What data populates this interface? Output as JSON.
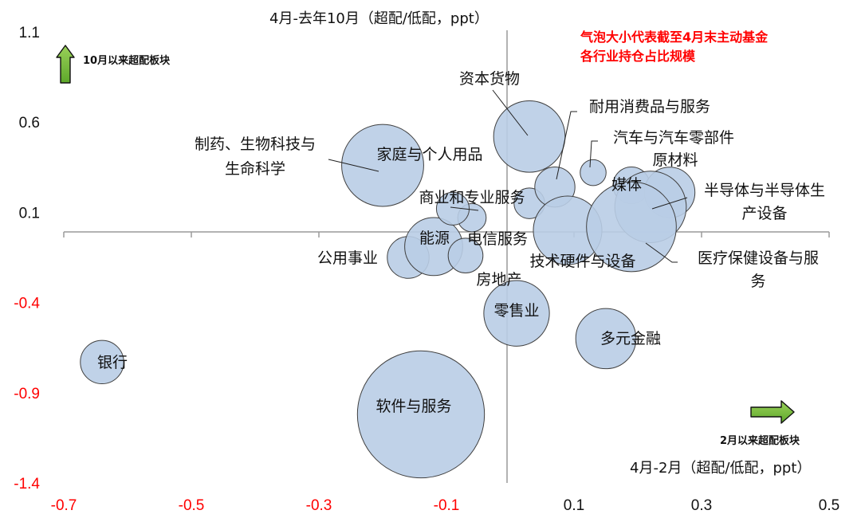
{
  "chart_data": {
    "type": "scatter",
    "variant": "bubble",
    "x_title": "4月-2月（超配/低配，ppt）",
    "y_title": "4月-去年10月（超配/低配，ppt）",
    "xlim": [
      -0.7,
      0.5
    ],
    "ylim": [
      -1.4,
      1.1
    ],
    "x_ticks": [
      "-0.7",
      "-0.5",
      "-0.3",
      "-0.1",
      "0.1",
      "0.3",
      "0.5"
    ],
    "y_ticks": [
      "1.1",
      "0.6",
      "0.1",
      "-0.4",
      "-0.9",
      "-1.4"
    ],
    "grid": false,
    "bubble_fill": "#b9cde6",
    "bubble_stroke": "#404040",
    "positive_tick_color": "#111111",
    "negative_tick_color": "#ff0000",
    "annotation_color": "#ff0000",
    "arrow_color": "#77bb41",
    "size_note": "气泡大小代表截至4月末主动基金\n各行业持仓占比规模",
    "up_arrow_label": "10月以来超配板块",
    "right_arrow_label": "2月以来超配板块",
    "points": [
      {
        "name": "银行",
        "x": -0.64,
        "y": -0.73,
        "size": 1.4
      },
      {
        "name": "软件与服务",
        "x": -0.14,
        "y": -1.02,
        "size": 12.0
      },
      {
        "name": "零售业",
        "x": 0.01,
        "y": -0.46,
        "size": 3.2
      },
      {
        "name": "多元金融",
        "x": 0.15,
        "y": -0.6,
        "size": 2.7
      },
      {
        "name": "公用事业",
        "x": -0.16,
        "y": -0.15,
        "size": 1.3
      },
      {
        "name": "能源",
        "x": -0.12,
        "y": -0.09,
        "size": 2.5
      },
      {
        "name": "房地产",
        "x": -0.07,
        "y": -0.14,
        "size": 0.9
      },
      {
        "name": "电信服务",
        "x": -0.06,
        "y": 0.07,
        "size": 0.6
      },
      {
        "name": "家庭与个人用品",
        "x": -0.2,
        "y": 0.36,
        "size": 5.0
      },
      {
        "name": "制药、生物科技与生命科学",
        "x": -0.09,
        "y": 0.12,
        "size": 0.8
      },
      {
        "name": "商业和专业服务",
        "x": 0.03,
        "y": 0.15,
        "size": 0.7
      },
      {
        "name": "资本货物",
        "x": 0.03,
        "y": 0.52,
        "size": 3.8
      },
      {
        "name": "耐用消费品与服务",
        "x": 0.07,
        "y": 0.24,
        "size": 1.2
      },
      {
        "name": "汽车与汽车零部件",
        "x": 0.13,
        "y": 0.32,
        "size": 0.5
      },
      {
        "name": "媒体",
        "x": 0.19,
        "y": 0.25,
        "size": 1.0
      },
      {
        "name": "原材料",
        "x": 0.25,
        "y": 0.21,
        "size": 1.9
      },
      {
        "name": "技术硬件与设备",
        "x": 0.09,
        "y": 0.0,
        "size": 3.5
      },
      {
        "name": "半导体与半导体生产设备",
        "x": 0.22,
        "y": 0.13,
        "size": 3.8
      },
      {
        "name": "医疗保健设备与服务",
        "x": 0.19,
        "y": 0.02,
        "size": 6.0
      }
    ]
  }
}
